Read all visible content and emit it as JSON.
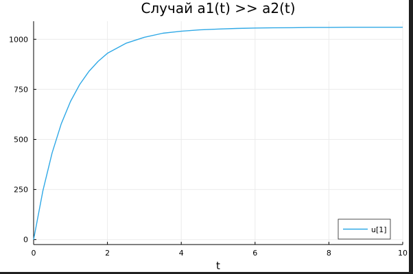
{
  "chart_data": {
    "type": "line",
    "title": "Случай a1(t) >> a2(t)",
    "xlabel": "t",
    "ylabel": "",
    "xlim": [
      0,
      10
    ],
    "ylim": [
      -25,
      1090
    ],
    "x_ticks": [
      0,
      2,
      4,
      6,
      8,
      10
    ],
    "y_ticks": [
      0,
      250,
      500,
      750,
      1000
    ],
    "grid": true,
    "legend_position": "bottom-right",
    "series": [
      {
        "name": "u[1]",
        "color": "#2ea8e6",
        "x": [
          0,
          0.25,
          0.5,
          0.75,
          1,
          1.25,
          1.5,
          1.75,
          2,
          2.5,
          3,
          3.5,
          4,
          4.5,
          5,
          5.5,
          6,
          6.5,
          7,
          7.5,
          8,
          8.5,
          9,
          9.5,
          10
        ],
        "y": [
          0,
          243,
          432,
          578,
          690,
          775,
          840,
          890,
          930,
          980,
          1010,
          1030,
          1040,
          1047,
          1051,
          1054,
          1056,
          1057,
          1058,
          1059,
          1059,
          1060,
          1060,
          1060,
          1060
        ]
      }
    ]
  }
}
